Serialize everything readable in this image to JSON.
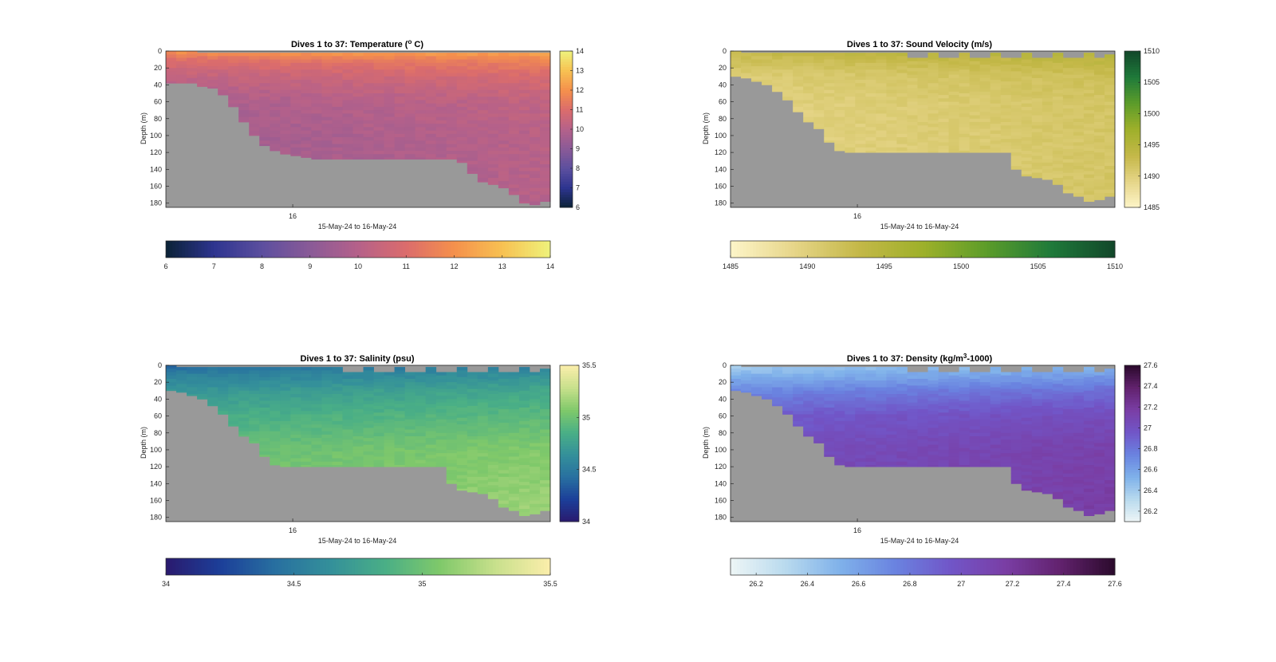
{
  "figure": {
    "background": "#ffffff",
    "land_color": "#999999"
  },
  "chart_data": [
    {
      "type": "heatmap",
      "id": "temperature",
      "title": "Dives 1 to 37: Temperature (",
      "title_sup": "o",
      "title_after": " C)",
      "xlabel": "15-May-24 to 16-May-24",
      "ylabel": "Depth (m)",
      "x_ticks": [
        "16"
      ],
      "x_tick_fraction": [
        0.33
      ],
      "ylim": [
        0,
        185
      ],
      "y_ticks": [
        0,
        20,
        40,
        60,
        80,
        100,
        120,
        140,
        160,
        180
      ],
      "y_tick_labels": [
        "0",
        "20",
        "40",
        "60",
        "80",
        "100",
        "120",
        "140",
        "160",
        "180"
      ],
      "colorbar": {
        "min": 6,
        "max": 14,
        "ticks": [
          6,
          7,
          8,
          9,
          10,
          11,
          12,
          13,
          14
        ],
        "tick_labels": [
          "6",
          "7",
          "8",
          "9",
          "10",
          "11",
          "12",
          "13",
          "14"
        ]
      },
      "colormap": [
        "#0b2236",
        "#2d348f",
        "#5c4f9f",
        "#8a5a97",
        "#b5618a",
        "#db6c6c",
        "#f5904c",
        "#f7c152",
        "#eef27b"
      ],
      "dives": 37,
      "bottom_depth": [
        38,
        38,
        38,
        42,
        44,
        52,
        66,
        84,
        100,
        112,
        118,
        122,
        124,
        126,
        128,
        128,
        128,
        128,
        128,
        128,
        128,
        128,
        128,
        128,
        128,
        128,
        128,
        128,
        132,
        145,
        155,
        158,
        162,
        170,
        180,
        182,
        178
      ],
      "surface_gap": [
        0,
        0,
        0,
        2,
        2,
        2,
        2,
        2,
        2,
        2,
        2,
        2,
        2,
        2,
        2,
        2,
        2,
        2,
        2,
        2,
        2,
        2,
        2,
        2,
        2,
        2,
        2,
        2,
        2,
        2,
        2,
        2,
        2,
        2,
        2,
        2,
        2
      ],
      "profile": [
        [
          0,
          12.4
        ],
        [
          10,
          11.4
        ],
        [
          30,
          10.6
        ],
        [
          60,
          10.0
        ],
        [
          100,
          9.8
        ],
        [
          185,
          9.7
        ]
      ]
    },
    {
      "type": "heatmap",
      "id": "sound-velocity",
      "title": "Dives 1 to 37: Sound Velocity (m/s)",
      "xlabel": "15-May-24 to 16-May-24",
      "ylabel": "Depth (m)",
      "x_ticks": [
        "16"
      ],
      "x_tick_fraction": [
        0.33
      ],
      "ylim": [
        0,
        185
      ],
      "y_ticks": [
        0,
        20,
        40,
        60,
        80,
        100,
        120,
        140,
        160,
        180
      ],
      "y_tick_labels": [
        "0",
        "20",
        "40",
        "60",
        "80",
        "100",
        "120",
        "140",
        "160",
        "180"
      ],
      "colorbar": {
        "min": 1485,
        "max": 1510,
        "ticks": [
          1485,
          1490,
          1495,
          1500,
          1505,
          1510
        ],
        "tick_labels": [
          "1485",
          "1490",
          "1495",
          "1500",
          "1505",
          "1510"
        ]
      },
      "colormap": [
        "#fdf5c9",
        "#e6d588",
        "#c4b848",
        "#9eb02a",
        "#5c9c2a",
        "#1f7a3a",
        "#12472a"
      ],
      "dives": 37,
      "bottom_depth": [
        30,
        32,
        36,
        40,
        48,
        58,
        72,
        84,
        92,
        108,
        118,
        120,
        120,
        120,
        120,
        120,
        120,
        120,
        120,
        120,
        120,
        120,
        120,
        120,
        120,
        120,
        120,
        140,
        148,
        150,
        152,
        158,
        168,
        172,
        178,
        176,
        172
      ],
      "surface_gap": [
        0,
        2,
        2,
        2,
        2,
        2,
        2,
        2,
        2,
        2,
        2,
        2,
        2,
        2,
        2,
        2,
        2,
        8,
        8,
        2,
        8,
        8,
        2,
        8,
        8,
        2,
        8,
        8,
        2,
        8,
        8,
        2,
        8,
        8,
        2,
        8,
        4
      ],
      "profile": [
        [
          0,
          1494.5
        ],
        [
          10,
          1493.2
        ],
        [
          30,
          1491.4
        ],
        [
          60,
          1490.6
        ],
        [
          100,
          1490.4
        ],
        [
          185,
          1490.5
        ]
      ]
    },
    {
      "type": "heatmap",
      "id": "salinity",
      "title": "Dives 1 to 37: Salinity (psu)",
      "xlabel": "15-May-24 to 16-May-24",
      "ylabel": "Depth (m)",
      "x_ticks": [
        "16"
      ],
      "x_tick_fraction": [
        0.33
      ],
      "ylim": [
        0,
        185
      ],
      "y_ticks": [
        0,
        20,
        40,
        60,
        80,
        100,
        120,
        140,
        160,
        180
      ],
      "y_tick_labels": [
        "0",
        "20",
        "40",
        "60",
        "80",
        "100",
        "120",
        "140",
        "160",
        "180"
      ],
      "colorbar": {
        "min": 34,
        "max": 35.5,
        "ticks": [
          34,
          34.5,
          35,
          35.5
        ],
        "tick_labels": [
          "34",
          "34.5",
          "35",
          "35.5"
        ]
      },
      "colormap": [
        "#2a1a6e",
        "#1c3f99",
        "#2870a0",
        "#34909a",
        "#4aaf86",
        "#80c96a",
        "#c8e08c",
        "#fbeeab"
      ],
      "dives": 37,
      "bottom_depth": [
        30,
        32,
        36,
        40,
        48,
        58,
        72,
        84,
        92,
        108,
        118,
        120,
        120,
        120,
        120,
        120,
        120,
        120,
        120,
        120,
        120,
        120,
        120,
        120,
        120,
        120,
        120,
        140,
        148,
        150,
        152,
        158,
        168,
        172,
        178,
        176,
        172
      ],
      "surface_gap": [
        0,
        2,
        2,
        2,
        2,
        2,
        2,
        2,
        2,
        2,
        2,
        2,
        2,
        2,
        2,
        2,
        2,
        8,
        8,
        2,
        8,
        8,
        2,
        8,
        8,
        2,
        8,
        8,
        2,
        8,
        8,
        2,
        8,
        8,
        2,
        8,
        4
      ],
      "profile": [
        [
          0,
          34.45
        ],
        [
          10,
          34.58
        ],
        [
          30,
          34.74
        ],
        [
          60,
          34.88
        ],
        [
          100,
          35.02
        ],
        [
          185,
          35.12
        ]
      ]
    },
    {
      "type": "heatmap",
      "id": "density",
      "title": "Dives 1 to 37: Density (kg/m",
      "title_sup": "3",
      "title_after": "-1000)",
      "xlabel": "15-May-24 to 16-May-24",
      "ylabel": "Depth (m)",
      "x_ticks": [
        "16"
      ],
      "x_tick_fraction": [
        0.33
      ],
      "ylim": [
        0,
        185
      ],
      "y_ticks": [
        0,
        20,
        40,
        60,
        80,
        100,
        120,
        140,
        160,
        180
      ],
      "y_tick_labels": [
        "0",
        "20",
        "40",
        "60",
        "80",
        "100",
        "120",
        "140",
        "160",
        "180"
      ],
      "colorbar": {
        "min": 26.1,
        "max": 27.6,
        "ticks": [
          26.2,
          26.4,
          26.6,
          26.8,
          27,
          27.2,
          27.4,
          27.6
        ],
        "tick_labels": [
          "26.2",
          "26.4",
          "26.6",
          "26.8",
          "27",
          "27.2",
          "27.4",
          "27.6"
        ]
      },
      "colormap": [
        "#eef6f6",
        "#b9daee",
        "#7fb1ea",
        "#6a83e0",
        "#7156c8",
        "#7a3ea5",
        "#62226e",
        "#2b0a2c"
      ],
      "dives": 37,
      "bottom_depth": [
        30,
        32,
        36,
        40,
        48,
        58,
        72,
        84,
        92,
        108,
        118,
        120,
        120,
        120,
        120,
        120,
        120,
        120,
        120,
        120,
        120,
        120,
        120,
        120,
        120,
        120,
        120,
        140,
        148,
        150,
        152,
        158,
        168,
        172,
        178,
        176,
        172
      ],
      "surface_gap": [
        0,
        2,
        2,
        2,
        2,
        2,
        2,
        2,
        2,
        2,
        2,
        2,
        2,
        2,
        2,
        2,
        2,
        8,
        8,
        2,
        8,
        8,
        2,
        8,
        8,
        2,
        8,
        8,
        2,
        8,
        8,
        2,
        8,
        8,
        2,
        8,
        4
      ],
      "profile": [
        [
          0,
          26.45
        ],
        [
          10,
          26.55
        ],
        [
          30,
          26.78
        ],
        [
          60,
          26.98
        ],
        [
          100,
          27.08
        ],
        [
          185,
          27.12
        ]
      ]
    }
  ]
}
